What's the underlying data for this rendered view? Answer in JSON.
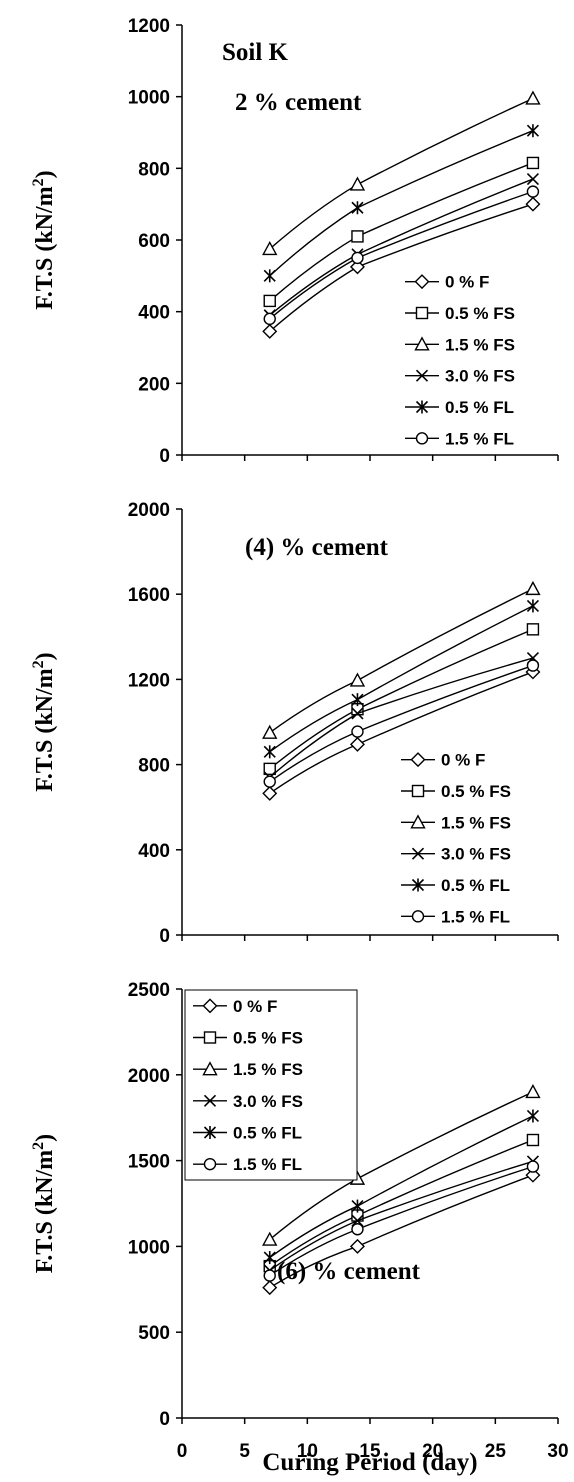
{
  "chart_data": [
    {
      "type": "line",
      "ylabel": "F.T.S (kN/m2)",
      "yticks": [
        "0",
        "200",
        "400",
        "600",
        "800",
        "1000",
        "1200"
      ],
      "ylim": [
        0,
        1200
      ],
      "xlim": [
        0,
        30
      ],
      "annotations": [
        "Soil K",
        "2 % cement"
      ],
      "legend": "bottom-right",
      "x": [
        7,
        14,
        28
      ],
      "series": [
        {
          "name": "0 % F",
          "marker": "diamond",
          "values": [
            345,
            525,
            700
          ]
        },
        {
          "name": "0.5 % FS",
          "marker": "square",
          "values": [
            430,
            610,
            815
          ]
        },
        {
          "name": "1.5 % FS",
          "marker": "triangle",
          "values": [
            575,
            755,
            995
          ]
        },
        {
          "name": "3.0 % FS",
          "marker": "x",
          "values": [
            390,
            560,
            770
          ]
        },
        {
          "name": "0.5 % FL",
          "marker": "asterisk",
          "values": [
            500,
            690,
            905
          ]
        },
        {
          "name": "1.5 % FL",
          "marker": "circle",
          "values": [
            380,
            550,
            735
          ]
        }
      ]
    },
    {
      "type": "line",
      "ylabel": "F.T.S (kN/m2)",
      "yticks": [
        "0",
        "400",
        "800",
        "1200",
        "1600",
        "2000"
      ],
      "ylim": [
        0,
        2000
      ],
      "xlim": [
        0,
        30
      ],
      "annotations": [
        "(4) % cement"
      ],
      "legend": "bottom-right",
      "x": [
        7,
        14,
        28
      ],
      "series": [
        {
          "name": "0 % F",
          "marker": "diamond",
          "values": [
            665,
            895,
            1235
          ]
        },
        {
          "name": "0.5 % FS",
          "marker": "square",
          "values": [
            780,
            1060,
            1435
          ]
        },
        {
          "name": "1.5 % FS",
          "marker": "triangle",
          "values": [
            950,
            1195,
            1625
          ]
        },
        {
          "name": "3.0 % FS",
          "marker": "x",
          "values": [
            740,
            1040,
            1300
          ]
        },
        {
          "name": "0.5 % FL",
          "marker": "asterisk",
          "values": [
            860,
            1105,
            1545
          ]
        },
        {
          "name": "1.5 % FL",
          "marker": "circle",
          "values": [
            720,
            955,
            1265
          ]
        }
      ]
    },
    {
      "type": "line",
      "ylabel": "F.T.S (kN/m2)",
      "xlabel": "Curing Period (day)",
      "yticks": [
        "0",
        "500",
        "1000",
        "1500",
        "2000",
        "2500"
      ],
      "xticks": [
        "0",
        "5",
        "10",
        "15",
        "20",
        "25",
        "30"
      ],
      "ylim": [
        0,
        2500
      ],
      "xlim": [
        0,
        30
      ],
      "annotations": [
        "(6) % cement"
      ],
      "legend": "top-left",
      "x": [
        7,
        14,
        28
      ],
      "series": [
        {
          "name": "0 % F",
          "marker": "diamond",
          "values": [
            760,
            1000,
            1415
          ]
        },
        {
          "name": "0.5 % FS",
          "marker": "square",
          "values": [
            885,
            1180,
            1620
          ]
        },
        {
          "name": "1.5 % FS",
          "marker": "triangle",
          "values": [
            1040,
            1395,
            1900
          ]
        },
        {
          "name": "3.0 % FS",
          "marker": "x",
          "values": [
            860,
            1150,
            1495
          ]
        },
        {
          "name": "0.5 % FL",
          "marker": "asterisk",
          "values": [
            935,
            1235,
            1760
          ]
        },
        {
          "name": "1.5 % FL",
          "marker": "circle",
          "values": [
            830,
            1100,
            1465
          ]
        }
      ]
    }
  ]
}
